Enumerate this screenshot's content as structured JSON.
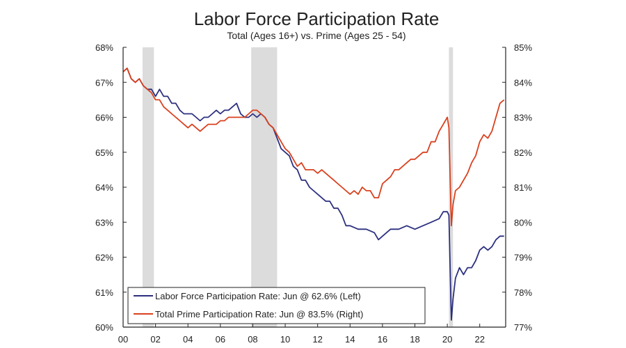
{
  "chart_data": {
    "type": "line",
    "title": "Labor Force Participation Rate",
    "subtitle": "Total (Ages 16+) vs. Prime (Ages 25 - 54)",
    "x_ticks": [
      "00",
      "02",
      "04",
      "06",
      "08",
      "10",
      "12",
      "14",
      "16",
      "18",
      "20",
      "22"
    ],
    "x_tick_years": [
      2000,
      2002,
      2004,
      2006,
      2008,
      2010,
      2012,
      2014,
      2016,
      2018,
      2020,
      2022
    ],
    "xlim": [
      2000,
      2023.6
    ],
    "y_left": {
      "ticks": [
        "60%",
        "61%",
        "62%",
        "63%",
        "64%",
        "65%",
        "66%",
        "67%",
        "68%"
      ],
      "lim": [
        60,
        68
      ]
    },
    "y_right": {
      "ticks": [
        "77%",
        "78%",
        "79%",
        "80%",
        "81%",
        "82%",
        "83%",
        "84%",
        "85%"
      ],
      "lim": [
        77,
        85
      ]
    },
    "recessions": [
      [
        2001.2,
        2001.9
      ],
      [
        2007.9,
        2009.5
      ],
      [
        2020.1,
        2020.35
      ]
    ],
    "legend_position": "bottom-left",
    "grid": false,
    "series": [
      {
        "name": "Labor Force Participation Rate: Jun @ 62.6% (Left)",
        "axis": "left",
        "color": "#2b2f7f",
        "points": [
          [
            2000.0,
            67.3
          ],
          [
            2000.25,
            67.4
          ],
          [
            2000.5,
            67.1
          ],
          [
            2000.75,
            67.0
          ],
          [
            2001.0,
            67.1
          ],
          [
            2001.25,
            66.9
          ],
          [
            2001.5,
            66.8
          ],
          [
            2001.75,
            66.8
          ],
          [
            2002.0,
            66.6
          ],
          [
            2002.25,
            66.8
          ],
          [
            2002.5,
            66.6
          ],
          [
            2002.75,
            66.6
          ],
          [
            2003.0,
            66.4
          ],
          [
            2003.25,
            66.4
          ],
          [
            2003.5,
            66.2
          ],
          [
            2003.75,
            66.1
          ],
          [
            2004.0,
            66.1
          ],
          [
            2004.25,
            66.1
          ],
          [
            2004.5,
            66.0
          ],
          [
            2004.75,
            65.9
          ],
          [
            2005.0,
            66.0
          ],
          [
            2005.25,
            66.0
          ],
          [
            2005.5,
            66.1
          ],
          [
            2005.75,
            66.2
          ],
          [
            2006.0,
            66.1
          ],
          [
            2006.25,
            66.2
          ],
          [
            2006.5,
            66.2
          ],
          [
            2006.75,
            66.3
          ],
          [
            2007.0,
            66.4
          ],
          [
            2007.25,
            66.1
          ],
          [
            2007.5,
            66.0
          ],
          [
            2007.75,
            66.0
          ],
          [
            2008.0,
            66.1
          ],
          [
            2008.25,
            66.0
          ],
          [
            2008.5,
            66.1
          ],
          [
            2008.75,
            66.0
          ],
          [
            2009.0,
            65.8
          ],
          [
            2009.25,
            65.7
          ],
          [
            2009.5,
            65.4
          ],
          [
            2009.75,
            65.1
          ],
          [
            2010.0,
            65.0
          ],
          [
            2010.25,
            64.9
          ],
          [
            2010.5,
            64.6
          ],
          [
            2010.75,
            64.5
          ],
          [
            2011.0,
            64.2
          ],
          [
            2011.25,
            64.2
          ],
          [
            2011.5,
            64.0
          ],
          [
            2011.75,
            63.9
          ],
          [
            2012.0,
            63.8
          ],
          [
            2012.25,
            63.7
          ],
          [
            2012.5,
            63.6
          ],
          [
            2012.75,
            63.6
          ],
          [
            2013.0,
            63.4
          ],
          [
            2013.25,
            63.4
          ],
          [
            2013.5,
            63.2
          ],
          [
            2013.75,
            62.9
          ],
          [
            2014.0,
            62.9
          ],
          [
            2014.5,
            62.8
          ],
          [
            2015.0,
            62.8
          ],
          [
            2015.5,
            62.7
          ],
          [
            2015.75,
            62.5
          ],
          [
            2016.0,
            62.6
          ],
          [
            2016.5,
            62.8
          ],
          [
            2017.0,
            62.8
          ],
          [
            2017.5,
            62.9
          ],
          [
            2018.0,
            62.8
          ],
          [
            2018.5,
            62.9
          ],
          [
            2019.0,
            63.0
          ],
          [
            2019.5,
            63.1
          ],
          [
            2019.75,
            63.3
          ],
          [
            2020.0,
            63.3
          ],
          [
            2020.1,
            63.2
          ],
          [
            2020.25,
            60.2
          ],
          [
            2020.35,
            60.8
          ],
          [
            2020.5,
            61.4
          ],
          [
            2020.75,
            61.7
          ],
          [
            2021.0,
            61.5
          ],
          [
            2021.25,
            61.7
          ],
          [
            2021.5,
            61.7
          ],
          [
            2021.75,
            61.9
          ],
          [
            2022.0,
            62.2
          ],
          [
            2022.25,
            62.3
          ],
          [
            2022.5,
            62.2
          ],
          [
            2022.75,
            62.3
          ],
          [
            2023.0,
            62.5
          ],
          [
            2023.25,
            62.6
          ],
          [
            2023.5,
            62.6
          ]
        ]
      },
      {
        "name": "Total Prime Participation Rate: Jun @ 83.5% (Right)",
        "axis": "right",
        "color": "#d9401e",
        "points": [
          [
            2000.0,
            84.3
          ],
          [
            2000.25,
            84.4
          ],
          [
            2000.5,
            84.1
          ],
          [
            2000.75,
            84.0
          ],
          [
            2001.0,
            84.1
          ],
          [
            2001.25,
            83.9
          ],
          [
            2001.5,
            83.8
          ],
          [
            2001.75,
            83.7
          ],
          [
            2002.0,
            83.5
          ],
          [
            2002.25,
            83.5
          ],
          [
            2002.5,
            83.3
          ],
          [
            2002.75,
            83.2
          ],
          [
            2003.0,
            83.1
          ],
          [
            2003.25,
            83.0
          ],
          [
            2003.5,
            82.9
          ],
          [
            2003.75,
            82.8
          ],
          [
            2004.0,
            82.7
          ],
          [
            2004.25,
            82.8
          ],
          [
            2004.5,
            82.7
          ],
          [
            2004.75,
            82.6
          ],
          [
            2005.0,
            82.7
          ],
          [
            2005.25,
            82.8
          ],
          [
            2005.5,
            82.8
          ],
          [
            2005.75,
            82.8
          ],
          [
            2006.0,
            82.9
          ],
          [
            2006.25,
            82.9
          ],
          [
            2006.5,
            83.0
          ],
          [
            2006.75,
            83.0
          ],
          [
            2007.0,
            83.0
          ],
          [
            2007.25,
            83.0
          ],
          [
            2007.5,
            83.0
          ],
          [
            2007.75,
            83.1
          ],
          [
            2008.0,
            83.2
          ],
          [
            2008.25,
            83.2
          ],
          [
            2008.5,
            83.1
          ],
          [
            2008.75,
            83.0
          ],
          [
            2009.0,
            82.8
          ],
          [
            2009.25,
            82.7
          ],
          [
            2009.5,
            82.5
          ],
          [
            2009.75,
            82.3
          ],
          [
            2010.0,
            82.1
          ],
          [
            2010.25,
            82.0
          ],
          [
            2010.5,
            81.8
          ],
          [
            2010.75,
            81.6
          ],
          [
            2011.0,
            81.7
          ],
          [
            2011.25,
            81.5
          ],
          [
            2011.5,
            81.5
          ],
          [
            2011.75,
            81.5
          ],
          [
            2012.0,
            81.4
          ],
          [
            2012.25,
            81.5
          ],
          [
            2012.5,
            81.4
          ],
          [
            2012.75,
            81.3
          ],
          [
            2013.0,
            81.2
          ],
          [
            2013.25,
            81.1
          ],
          [
            2013.5,
            81.0
          ],
          [
            2013.75,
            80.9
          ],
          [
            2014.0,
            80.8
          ],
          [
            2014.25,
            80.9
          ],
          [
            2014.5,
            80.8
          ],
          [
            2014.75,
            81.0
          ],
          [
            2015.0,
            80.9
          ],
          [
            2015.25,
            80.9
          ],
          [
            2015.5,
            80.7
          ],
          [
            2015.75,
            80.7
          ],
          [
            2016.0,
            81.1
          ],
          [
            2016.25,
            81.2
          ],
          [
            2016.5,
            81.3
          ],
          [
            2016.75,
            81.5
          ],
          [
            2017.0,
            81.5
          ],
          [
            2017.25,
            81.6
          ],
          [
            2017.5,
            81.7
          ],
          [
            2017.75,
            81.8
          ],
          [
            2018.0,
            81.8
          ],
          [
            2018.25,
            81.9
          ],
          [
            2018.5,
            82.0
          ],
          [
            2018.75,
            82.0
          ],
          [
            2019.0,
            82.3
          ],
          [
            2019.25,
            82.3
          ],
          [
            2019.5,
            82.6
          ],
          [
            2019.75,
            82.8
          ],
          [
            2020.0,
            83.0
          ],
          [
            2020.1,
            82.7
          ],
          [
            2020.25,
            79.9
          ],
          [
            2020.35,
            80.5
          ],
          [
            2020.5,
            80.9
          ],
          [
            2020.75,
            81.0
          ],
          [
            2021.0,
            81.2
          ],
          [
            2021.25,
            81.4
          ],
          [
            2021.5,
            81.7
          ],
          [
            2021.75,
            81.9
          ],
          [
            2022.0,
            82.3
          ],
          [
            2022.25,
            82.5
          ],
          [
            2022.5,
            82.4
          ],
          [
            2022.75,
            82.6
          ],
          [
            2023.0,
            83.0
          ],
          [
            2023.25,
            83.4
          ],
          [
            2023.5,
            83.5
          ]
        ]
      }
    ]
  }
}
